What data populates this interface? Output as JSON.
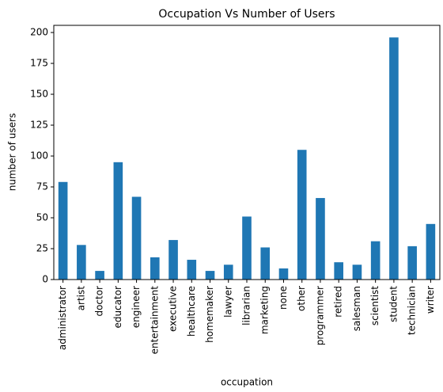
{
  "chart_data": {
    "type": "bar",
    "title": "Occupation Vs Number of Users",
    "x_label": "occupation",
    "y_label": "number of users",
    "categories": [
      "administrator",
      "artist",
      "doctor",
      "educator",
      "engineer",
      "entertainment",
      "executive",
      "healthcare",
      "homemaker",
      "lawyer",
      "librarian",
      "marketing",
      "none",
      "other",
      "programmer",
      "retired",
      "salesman",
      "scientist",
      "student",
      "technician",
      "writer"
    ],
    "values": [
      79,
      28,
      7,
      95,
      67,
      18,
      32,
      16,
      7,
      12,
      51,
      26,
      9,
      105,
      66,
      14,
      12,
      31,
      196,
      27,
      45
    ],
    "color": "#1f77b4",
    "ylim": [
      0,
      205.8
    ],
    "yticks": [
      0,
      25,
      50,
      75,
      100,
      125,
      150,
      175,
      200
    ],
    "grid": false
  }
}
